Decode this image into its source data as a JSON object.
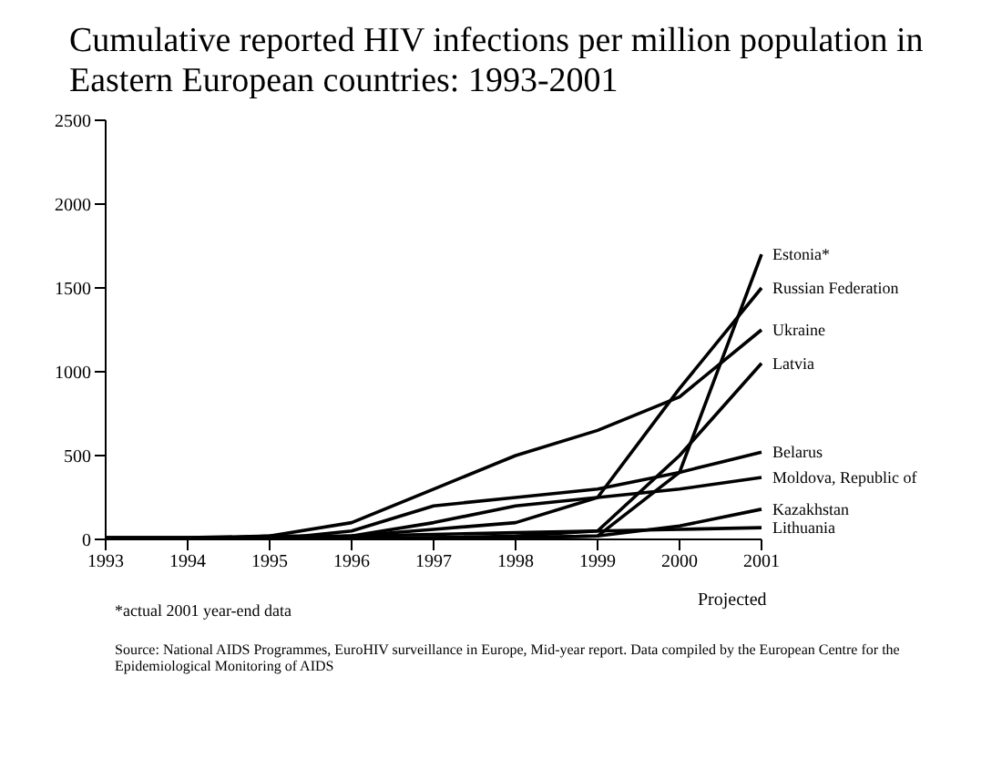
{
  "chart_data": {
    "type": "line",
    "title": "Cumulative reported HIV infections per million population in Eastern European countries: 1993-2001",
    "categories": [
      "1993",
      "1994",
      "1995",
      "1996",
      "1997",
      "1998",
      "1999",
      "2000",
      "2001"
    ],
    "series": [
      {
        "name": "Estonia*",
        "color": "#000000",
        "values": [
          10,
          10,
          10,
          10,
          10,
          10,
          20,
          400,
          1700
        ]
      },
      {
        "name": "Russian Federation",
        "color": "#000000",
        "values": [
          0,
          0,
          0,
          20,
          60,
          100,
          250,
          900,
          1500
        ]
      },
      {
        "name": "Ukraine",
        "color": "#000000",
        "values": [
          0,
          0,
          20,
          100,
          300,
          500,
          650,
          850,
          1250
        ]
      },
      {
        "name": "Latvia",
        "color": "#000000",
        "values": [
          0,
          0,
          0,
          0,
          10,
          20,
          50,
          500,
          1050
        ]
      },
      {
        "name": "Belarus",
        "color": "#000000",
        "values": [
          0,
          0,
          0,
          50,
          200,
          250,
          300,
          400,
          520
        ]
      },
      {
        "name": "Moldova, Republic of",
        "color": "#000000",
        "values": [
          0,
          0,
          0,
          20,
          100,
          200,
          250,
          300,
          370
        ]
      },
      {
        "name": "Kazakhstan",
        "color": "#000000",
        "values": [
          0,
          0,
          0,
          0,
          0,
          10,
          20,
          80,
          180
        ]
      },
      {
        "name": "Lithuania",
        "color": "#000000",
        "values": [
          10,
          10,
          20,
          20,
          30,
          40,
          50,
          60,
          70
        ]
      }
    ],
    "ylim": [
      0,
      2500
    ],
    "yticks": [
      0,
      500,
      1000,
      1500,
      2000,
      2500
    ],
    "marker": "none",
    "line_style": "solid",
    "annotations": [
      "Projected",
      "*actual 2001 year-end data",
      "Source: National AIDS Programmes, EuroHIV surveillance in Europe, Mid-year report. Data compiled by the European Centre for the Epidemiological Monitoring of AIDS"
    ]
  }
}
